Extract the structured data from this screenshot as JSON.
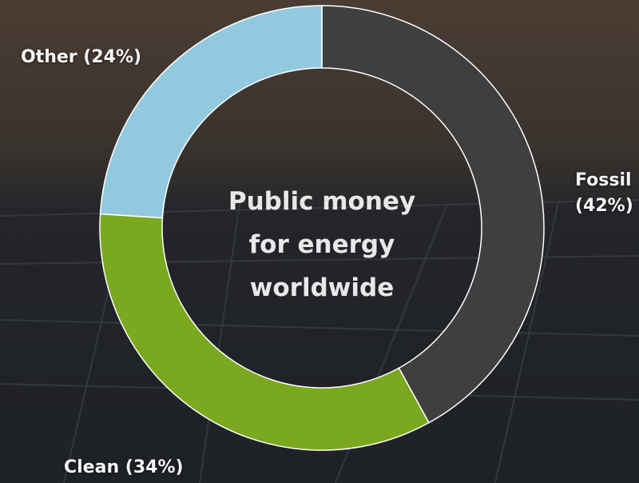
{
  "chart_data": {
    "type": "pie",
    "title": "Public money for energy worldwide",
    "categories": [
      "Fossil (42%)",
      "Clean (34%)",
      "Other (24%)"
    ],
    "values": [
      42,
      34,
      24
    ],
    "colors": [
      "#3f3f3f",
      "#7aa81e",
      "#93c9df"
    ]
  }
}
